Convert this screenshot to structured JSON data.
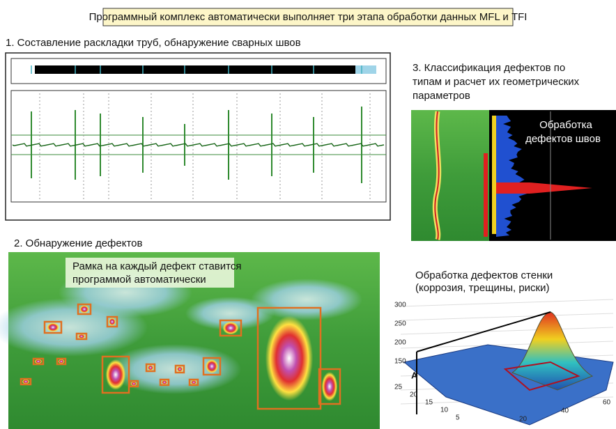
{
  "header": {
    "title": "Программный комплекс автоматически выполняет три этапа обработки данных MFL и TFI"
  },
  "section1": {
    "title": "1. Составление раскладки труб, обнаружение сварных швов"
  },
  "section2": {
    "title": "2. Обнаружение дефектов",
    "callout": [
      "Рамка на каждый дефект ставится",
      "программой автоматически"
    ]
  },
  "section3": {
    "title": [
      "3. Классификация дефектов по",
      "типам и расчет их геометрических",
      "параметров"
    ],
    "overlay": [
      "Обработка",
      "дефектов швов"
    ]
  },
  "section4": {
    "title": [
      "Обработка дефектов стенки",
      "(коррозия, трещины, риски)"
    ],
    "z_ticks": [
      "300",
      "250",
      "200",
      "150"
    ],
    "y_ticks": [
      "25",
      "20",
      "15",
      "10",
      "5"
    ],
    "x_ticks": [
      "20",
      "40",
      "60"
    ],
    "axis_label": "A"
  }
}
